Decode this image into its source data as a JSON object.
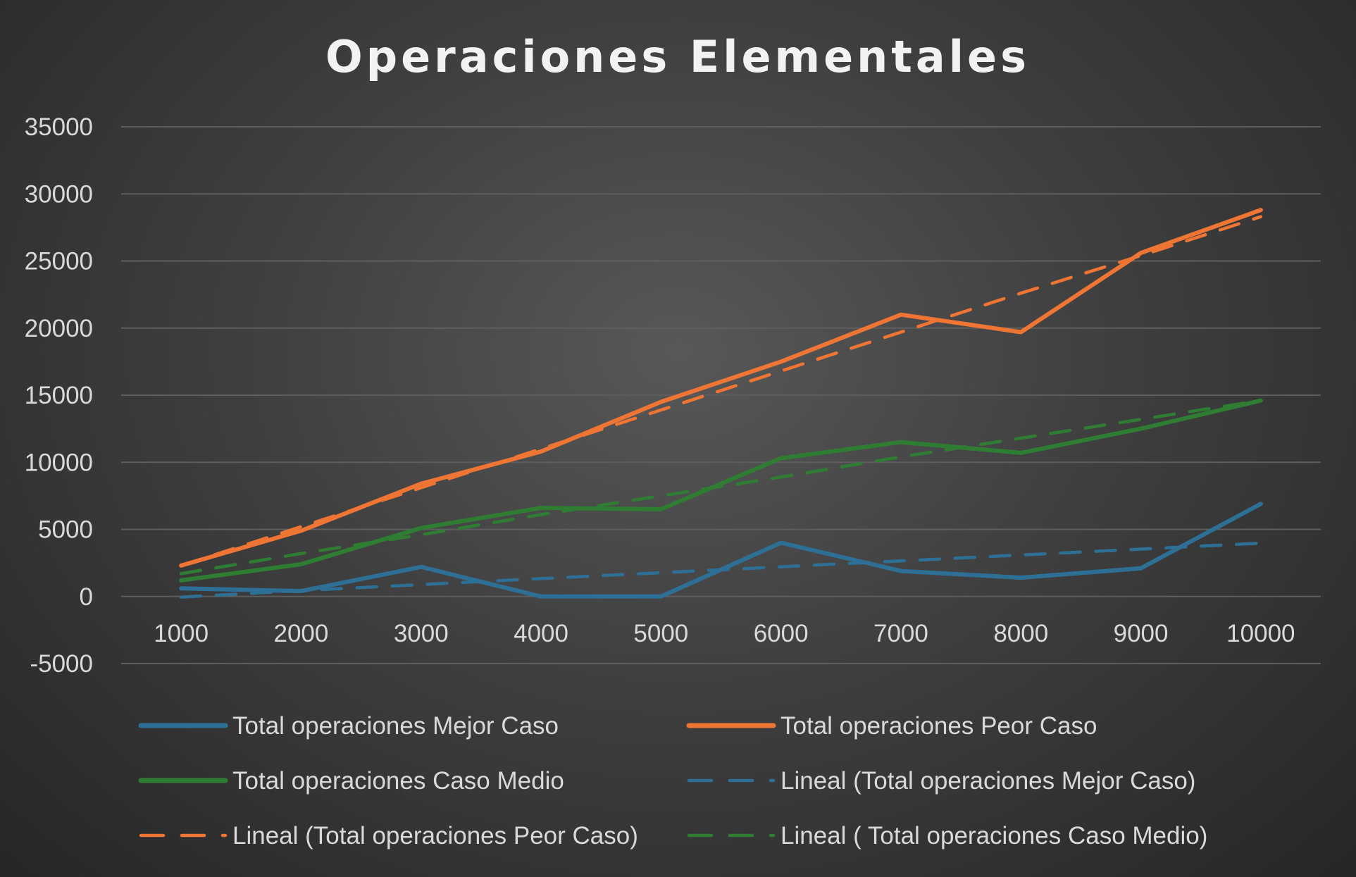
{
  "chart_data": {
    "type": "line",
    "title": "Operaciones Elementales",
    "xlabel": "",
    "ylabel": "",
    "categories": [
      "1000",
      "2000",
      "3000",
      "4000",
      "5000",
      "6000",
      "7000",
      "8000",
      "9000",
      "10000"
    ],
    "y_ticks": [
      "35000",
      "30000",
      "25000",
      "20000",
      "15000",
      "10000",
      "5000",
      "0",
      "-5000"
    ],
    "ylim": [
      -5000,
      35000
    ],
    "grid": true,
    "legend_position": "bottom",
    "series": [
      {
        "name": "Total operaciones Mejor Caso",
        "color": "#2e6f96",
        "style": "solid",
        "values": [
          600,
          400,
          2200,
          0,
          0,
          4000,
          1900,
          1400,
          2100,
          6900
        ]
      },
      {
        "name": "Total operaciones Peor Caso",
        "color": "#ee7533",
        "style": "solid",
        "values": [
          2300,
          4900,
          8400,
          10800,
          14500,
          17500,
          21000,
          19700,
          25600,
          28800
        ]
      },
      {
        "name": " Total operaciones Caso Medio",
        "color": "#2e7d32",
        "style": "solid",
        "values": [
          1200,
          2400,
          5100,
          6600,
          6500,
          10300,
          11500,
          10700,
          12500,
          14600
        ]
      },
      {
        "name": "Lineal (Total operaciones Mejor Caso)",
        "color": "#2e6f96",
        "style": "dashed",
        "values": [
          -50,
          440,
          890,
          1330,
          1770,
          2210,
          2650,
          3090,
          3530,
          3970
        ]
      },
      {
        "name": "Lineal (Total operaciones Peor Caso)",
        "color": "#ee7533",
        "style": "dashed",
        "values": [
          2300,
          5200,
          8100,
          11000,
          13900,
          16800,
          19700,
          22600,
          25400,
          28300
        ]
      },
      {
        "name": "Lineal ( Total operaciones Caso Medio)",
        "color": "#2e7d32",
        "style": "dashed",
        "values": [
          1700,
          3200,
          4600,
          6100,
          7500,
          8900,
          10400,
          11800,
          13200,
          14600
        ]
      }
    ]
  }
}
